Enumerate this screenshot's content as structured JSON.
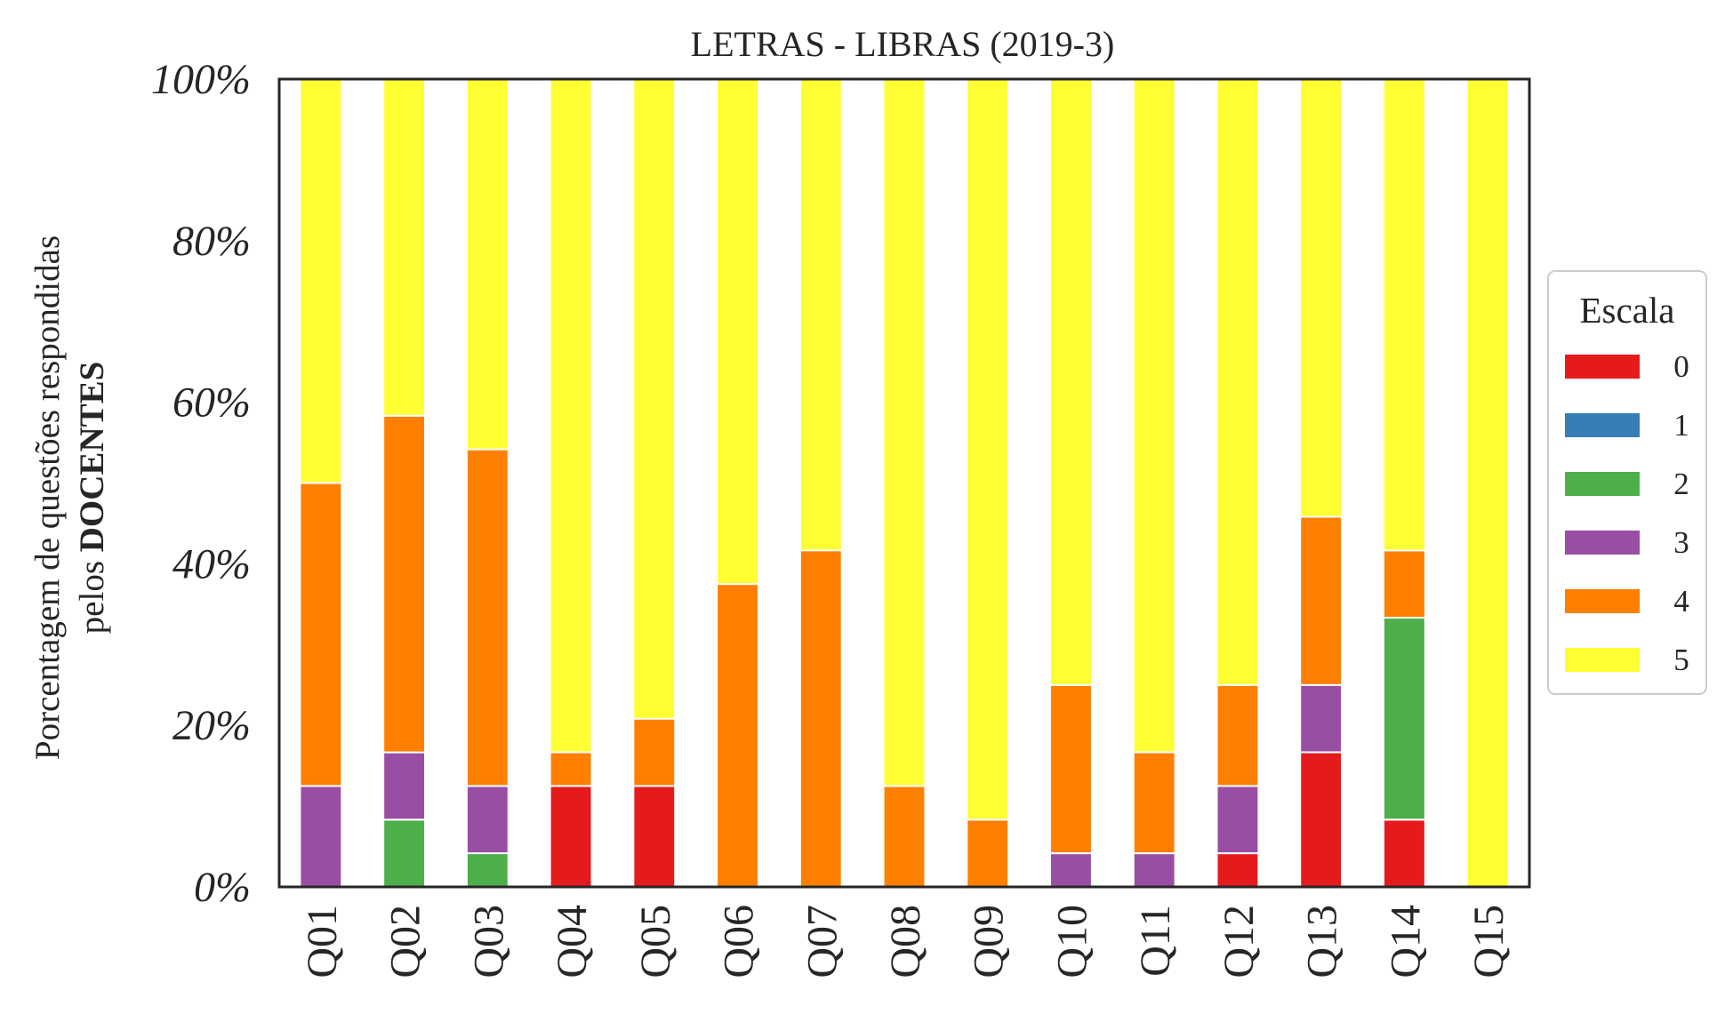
{
  "chart_data": {
    "type": "bar",
    "stacked": true,
    "title": "LETRAS - LIBRAS (2019-3)",
    "ylabel_line1": "Porcentagem de questões respondidas",
    "ylabel_line2_prefix": "pelos ",
    "ylabel_line2_bold": "DOCENTES",
    "ylim": [
      0,
      100
    ],
    "yticks": [
      0,
      20,
      40,
      60,
      80,
      100
    ],
    "ytick_labels": [
      "0%",
      "20%",
      "40%",
      "60%",
      "80%",
      "100%"
    ],
    "categories": [
      "Q01",
      "Q02",
      "Q03",
      "Q04",
      "Q05",
      "Q06",
      "Q07",
      "Q08",
      "Q09",
      "Q10",
      "Q11",
      "Q12",
      "Q13",
      "Q14",
      "Q15"
    ],
    "grid": false,
    "legend": {
      "title": "Escala",
      "placement": "right"
    },
    "series": [
      {
        "name": "0",
        "color": "#e41a1c",
        "values": [
          0,
          0,
          0,
          12.5,
          12.5,
          0,
          0,
          0,
          0,
          0,
          0,
          4.17,
          16.67,
          8.33,
          0
        ]
      },
      {
        "name": "1",
        "color": "#377eb8",
        "values": [
          0,
          0,
          0,
          0,
          0,
          0,
          0,
          0,
          0,
          0,
          0,
          0,
          0,
          0,
          0
        ]
      },
      {
        "name": "2",
        "color": "#4daf4a",
        "values": [
          0,
          8.33,
          4.17,
          0,
          0,
          0,
          0,
          0,
          0,
          0,
          0,
          0,
          0,
          25,
          0
        ]
      },
      {
        "name": "3",
        "color": "#984ea3",
        "values": [
          12.5,
          8.33,
          8.33,
          0,
          0,
          0,
          0,
          0,
          0,
          4.17,
          4.17,
          8.33,
          8.33,
          0,
          0
        ]
      },
      {
        "name": "4",
        "color": "#ff7f00",
        "values": [
          37.5,
          41.67,
          41.67,
          4.17,
          8.33,
          37.5,
          41.67,
          12.5,
          8.33,
          20.83,
          12.5,
          12.5,
          20.83,
          8.33,
          0
        ]
      },
      {
        "name": "5",
        "color": "#ffff33",
        "values": [
          50,
          41.67,
          45.83,
          83.33,
          79.17,
          62.5,
          58.33,
          87.5,
          91.67,
          75,
          83.33,
          75,
          54.17,
          58.33,
          100
        ]
      }
    ]
  }
}
